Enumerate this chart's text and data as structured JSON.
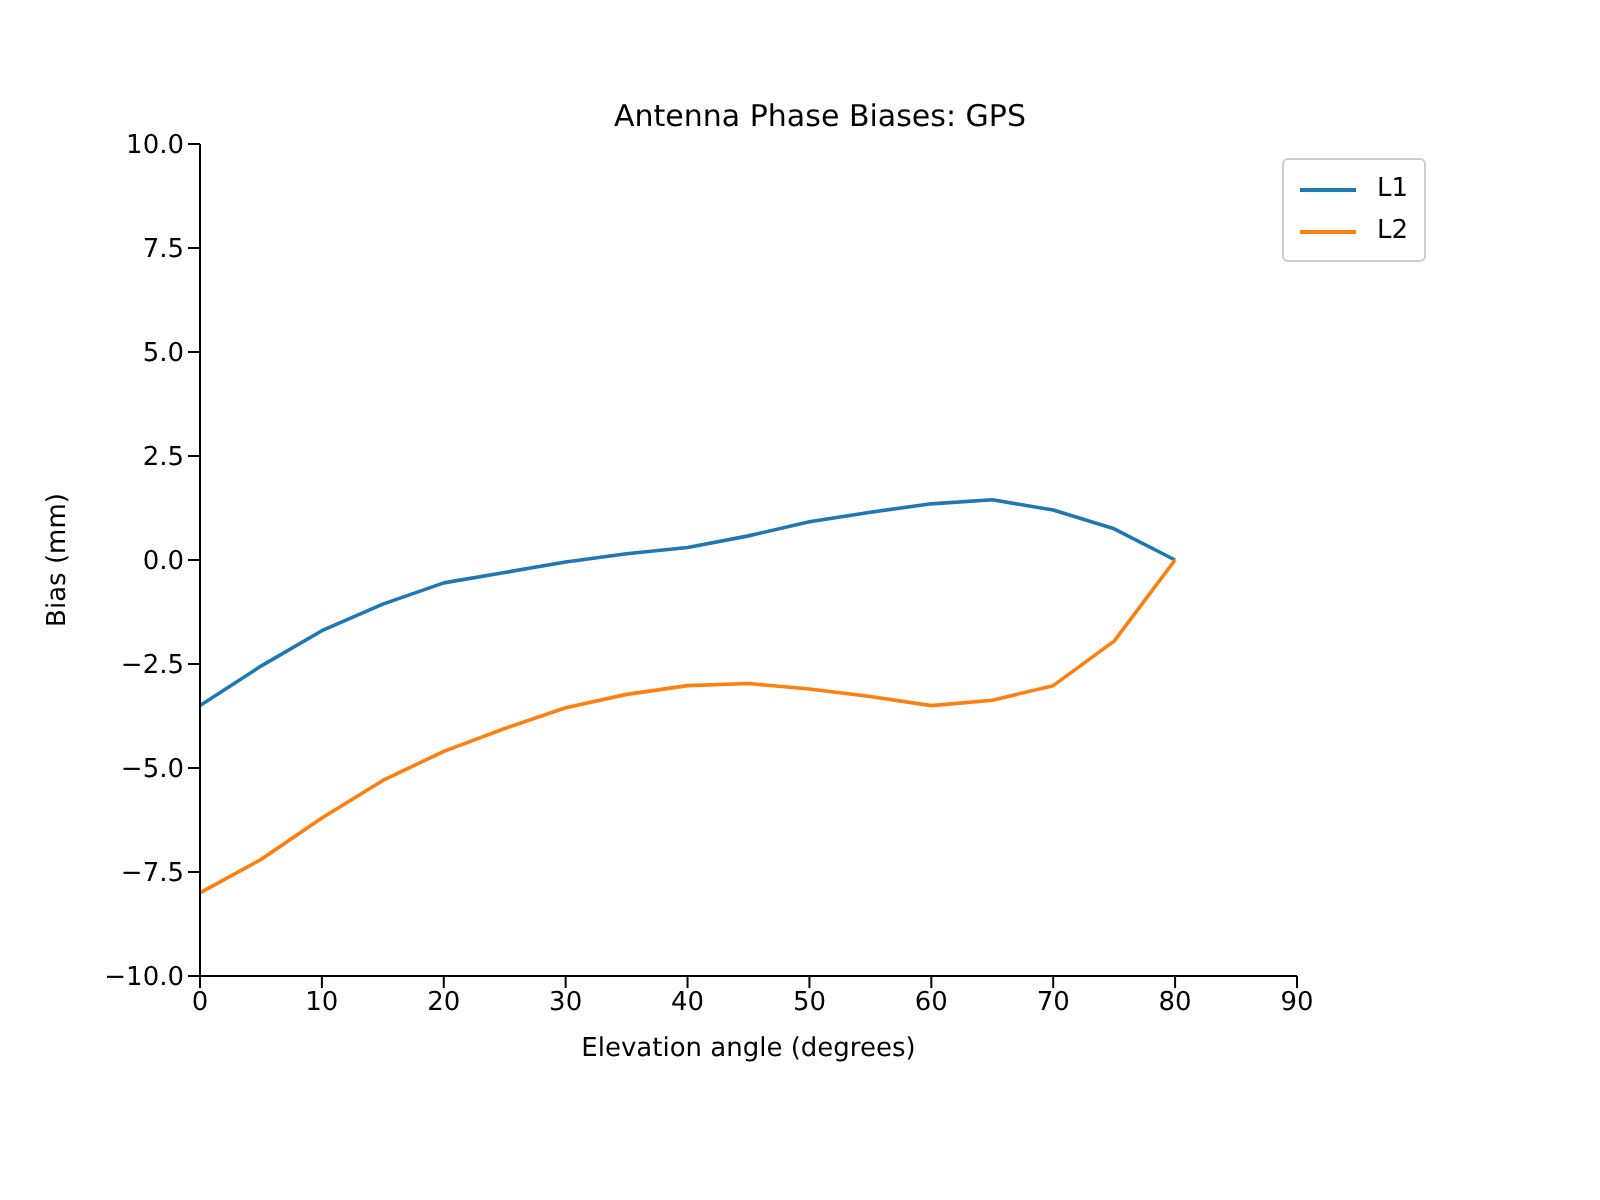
{
  "chart_data": {
    "type": "line",
    "title": "Antenna Phase Biases: GPS",
    "xlabel": "Elevation angle (degrees)",
    "ylabel": "Bias (mm)",
    "x": [
      0,
      5,
      10,
      15,
      20,
      25,
      30,
      35,
      40,
      45,
      50,
      55,
      60,
      65,
      70,
      75,
      80
    ],
    "series": [
      {
        "name": "L1",
        "color": "#1f77b4",
        "values": [
          -3.5,
          -2.55,
          -1.7,
          -1.06,
          -0.55,
          -0.3,
          -0.05,
          0.15,
          0.3,
          0.58,
          0.92,
          1.15,
          1.35,
          1.45,
          1.2,
          0.75,
          0
        ]
      },
      {
        "name": "L2",
        "color": "#ff7f0e",
        "values": [
          -8.0,
          -7.2,
          -6.2,
          -5.3,
          -4.6,
          -4.05,
          -3.55,
          -3.23,
          -3.02,
          -2.97,
          -3.1,
          -3.28,
          -3.5,
          -3.37,
          -3.02,
          -1.95,
          0
        ]
      }
    ],
    "xlim": [
      0,
      90
    ],
    "xticks": [
      0,
      10,
      20,
      30,
      40,
      50,
      60,
      70,
      80,
      90
    ],
    "ylim": [
      -10,
      10
    ],
    "yticks": [
      {
        "value": -10,
        "label": "−10.0"
      },
      {
        "value": -7.5,
        "label": "−7.5"
      },
      {
        "value": -5,
        "label": "−5.0"
      },
      {
        "value": -2.5,
        "label": "−2.5"
      },
      {
        "value": 0,
        "label": "0.0"
      },
      {
        "value": 2.5,
        "label": "2.5"
      },
      {
        "value": 5,
        "label": "5.0"
      },
      {
        "value": 7.5,
        "label": "7.5"
      },
      {
        "value": 10,
        "label": "10.0"
      }
    ],
    "grid": false,
    "legend": "top right",
    "marker": "none",
    "line_style": "solid"
  }
}
